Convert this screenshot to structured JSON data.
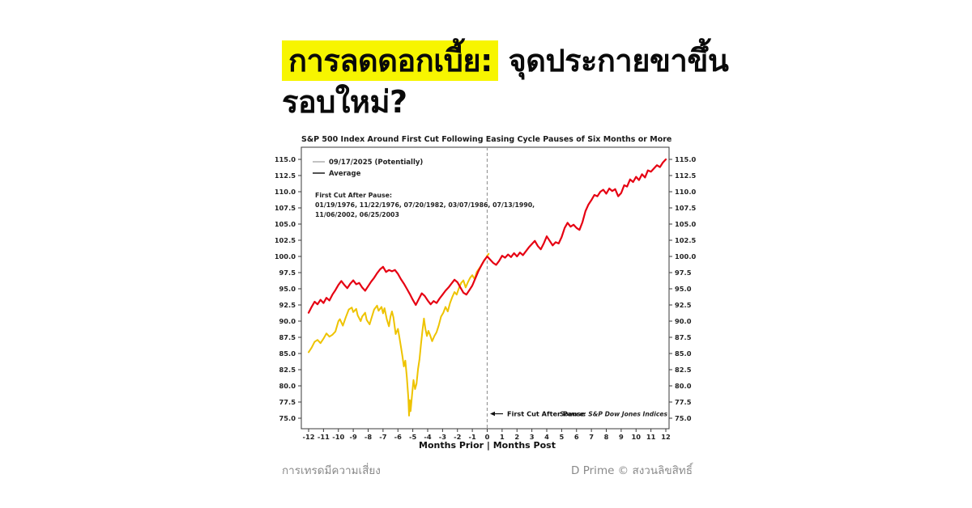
{
  "headline": {
    "highlight": "การลดดอกเบี้ย:",
    "rest": " จุดประกายขาขึ้น",
    "line2": "รอบใหม่?"
  },
  "footer": {
    "disclaimer": "การเทรดมีความเสี่ยง",
    "brand": "D Prime © สงวนลิขสิทธิ์"
  },
  "colors": {
    "headline_highlight": "#f7f500",
    "average_line": "#e60012",
    "potential_line": "#eec300",
    "legend_swatch_potential": "#b3b3b3",
    "legend_swatch_average": "#404040"
  },
  "chart_data": {
    "type": "line",
    "title": "S&P 500 Index Around First Cut Following Easing Cycle Pauses of Six Months or More",
    "xlabel": "Months Prior | Months Post",
    "ylabel": "",
    "xlim": [
      -12.5,
      12.5
    ],
    "ylim": [
      73.4,
      116.9
    ],
    "grid": false,
    "legend_position": "upper-left-inside",
    "x_ticks": [
      -12,
      -11,
      -10,
      -9,
      -8,
      -7,
      -6,
      -5,
      -4,
      -3,
      -2,
      -1,
      0,
      1,
      2,
      3,
      4,
      5,
      6,
      7,
      8,
      9,
      10,
      11,
      12
    ],
    "y_ticks": [
      75.0,
      77.5,
      80.0,
      82.5,
      85.0,
      87.5,
      90.0,
      92.5,
      95.0,
      97.5,
      100.0,
      102.5,
      105.0,
      107.5,
      110.0,
      112.5,
      115.0
    ],
    "legend": [
      {
        "label": "09/17/2025 (Potentially)",
        "swatch": "#b3b3b3"
      },
      {
        "label": "Average",
        "swatch": "#404040"
      }
    ],
    "annotation": {
      "title": "First Cut After Pause:",
      "lines": [
        "01/19/1976, 11/22/1976, 07/20/1982, 03/07/1986, 07/13/1990,",
        "11/06/2002, 06/25/2003"
      ]
    },
    "event_line_x": 0,
    "event_label": "First Cut After Pause",
    "source": "Source:   S&P Dow Jones Indices",
    "series": [
      {
        "name": "09/17/2025 (Potentially)",
        "color": "#eec300",
        "width": 2,
        "points": [
          [
            -12,
            85.2
          ],
          [
            -11.8,
            85.9
          ],
          [
            -11.6,
            86.8
          ],
          [
            -11.4,
            87.1
          ],
          [
            -11.2,
            86.6
          ],
          [
            -11,
            87.3
          ],
          [
            -10.8,
            88.1
          ],
          [
            -10.6,
            87.6
          ],
          [
            -10.4,
            87.9
          ],
          [
            -10.2,
            88.4
          ],
          [
            -10,
            90.0
          ],
          [
            -9.9,
            90.3
          ],
          [
            -9.7,
            89.3
          ],
          [
            -9.5,
            90.6
          ],
          [
            -9.3,
            91.8
          ],
          [
            -9.1,
            92.1
          ],
          [
            -9,
            91.4
          ],
          [
            -8.8,
            91.9
          ],
          [
            -8.7,
            90.9
          ],
          [
            -8.5,
            90.0
          ],
          [
            -8.4,
            90.7
          ],
          [
            -8.2,
            91.3
          ],
          [
            -8.1,
            90.2
          ],
          [
            -7.9,
            89.5
          ],
          [
            -7.8,
            90.3
          ],
          [
            -7.6,
            91.8
          ],
          [
            -7.4,
            92.4
          ],
          [
            -7.3,
            91.6
          ],
          [
            -7.1,
            92.2
          ],
          [
            -7,
            91.2
          ],
          [
            -6.9,
            92.0
          ],
          [
            -6.75,
            90.3
          ],
          [
            -6.6,
            89.2
          ],
          [
            -6.5,
            90.7
          ],
          [
            -6.4,
            91.5
          ],
          [
            -6.3,
            90.6
          ],
          [
            -6.15,
            88.0
          ],
          [
            -6,
            88.8
          ],
          [
            -5.9,
            87.5
          ],
          [
            -5.8,
            86.1
          ],
          [
            -5.7,
            84.6
          ],
          [
            -5.6,
            83.0
          ],
          [
            -5.5,
            83.9
          ],
          [
            -5.4,
            81.3
          ],
          [
            -5.3,
            78.2
          ],
          [
            -5.25,
            75.4
          ],
          [
            -5.2,
            77.8
          ],
          [
            -5.15,
            76.1
          ],
          [
            -5.05,
            78.6
          ],
          [
            -4.95,
            80.9
          ],
          [
            -4.85,
            79.5
          ],
          [
            -4.75,
            80.3
          ],
          [
            -4.65,
            82.6
          ],
          [
            -4.55,
            84.1
          ],
          [
            -4.45,
            86.4
          ],
          [
            -4.35,
            88.6
          ],
          [
            -4.25,
            90.4
          ],
          [
            -4.15,
            88.8
          ],
          [
            -4.05,
            87.7
          ],
          [
            -3.95,
            88.5
          ],
          [
            -3.85,
            87.9
          ],
          [
            -3.7,
            86.9
          ],
          [
            -3.55,
            87.7
          ],
          [
            -3.4,
            88.3
          ],
          [
            -3.25,
            89.4
          ],
          [
            -3.1,
            90.7
          ],
          [
            -2.95,
            91.3
          ],
          [
            -2.8,
            92.2
          ],
          [
            -2.65,
            91.5
          ],
          [
            -2.5,
            92.8
          ],
          [
            -2.35,
            93.7
          ],
          [
            -2.2,
            94.5
          ],
          [
            -2.05,
            94.1
          ],
          [
            -1.9,
            95.1
          ],
          [
            -1.75,
            95.9
          ],
          [
            -1.6,
            96.3
          ],
          [
            -1.45,
            95.2
          ],
          [
            -1.3,
            96.0
          ],
          [
            -1.15,
            96.7
          ],
          [
            -1,
            97.1
          ],
          [
            -0.85,
            96.5
          ],
          [
            -0.7,
            97.6
          ],
          [
            -0.55,
            98.1
          ],
          [
            -0.4,
            98.6
          ],
          [
            -0.25,
            99.2
          ],
          [
            -0.1,
            99.7
          ],
          [
            0,
            100.1
          ],
          [
            0.1,
            100.4
          ]
        ]
      },
      {
        "name": "Average",
        "color": "#e60012",
        "width": 2.2,
        "points": [
          [
            -12,
            91.3
          ],
          [
            -11.8,
            92.2
          ],
          [
            -11.6,
            93.0
          ],
          [
            -11.4,
            92.6
          ],
          [
            -11.2,
            93.3
          ],
          [
            -11,
            92.8
          ],
          [
            -10.8,
            93.6
          ],
          [
            -10.6,
            93.2
          ],
          [
            -10.4,
            94.1
          ],
          [
            -10.2,
            94.8
          ],
          [
            -10,
            95.6
          ],
          [
            -9.8,
            96.2
          ],
          [
            -9.6,
            95.6
          ],
          [
            -9.4,
            95.1
          ],
          [
            -9.2,
            95.8
          ],
          [
            -9,
            96.3
          ],
          [
            -8.8,
            95.7
          ],
          [
            -8.6,
            95.9
          ],
          [
            -8.4,
            95.2
          ],
          [
            -8.2,
            94.7
          ],
          [
            -8,
            95.4
          ],
          [
            -7.8,
            96.1
          ],
          [
            -7.6,
            96.7
          ],
          [
            -7.4,
            97.4
          ],
          [
            -7.2,
            98.0
          ],
          [
            -7,
            98.4
          ],
          [
            -6.8,
            97.6
          ],
          [
            -6.6,
            97.9
          ],
          [
            -6.4,
            97.7
          ],
          [
            -6.2,
            97.9
          ],
          [
            -6,
            97.3
          ],
          [
            -5.8,
            96.5
          ],
          [
            -5.6,
            95.8
          ],
          [
            -5.4,
            95.0
          ],
          [
            -5.2,
            94.2
          ],
          [
            -5,
            93.3
          ],
          [
            -4.8,
            92.5
          ],
          [
            -4.6,
            93.4
          ],
          [
            -4.4,
            94.3
          ],
          [
            -4.2,
            93.9
          ],
          [
            -4,
            93.2
          ],
          [
            -3.8,
            92.6
          ],
          [
            -3.6,
            93.1
          ],
          [
            -3.4,
            92.8
          ],
          [
            -3.2,
            93.5
          ],
          [
            -3,
            94.1
          ],
          [
            -2.8,
            94.7
          ],
          [
            -2.6,
            95.2
          ],
          [
            -2.4,
            95.8
          ],
          [
            -2.2,
            96.4
          ],
          [
            -2,
            96.0
          ],
          [
            -1.8,
            95.2
          ],
          [
            -1.6,
            94.4
          ],
          [
            -1.4,
            94.1
          ],
          [
            -1.2,
            94.8
          ],
          [
            -1,
            95.5
          ],
          [
            -0.8,
            96.6
          ],
          [
            -0.6,
            97.7
          ],
          [
            -0.4,
            98.6
          ],
          [
            -0.2,
            99.4
          ],
          [
            0,
            100.0
          ],
          [
            0.2,
            99.5
          ],
          [
            0.4,
            99.0
          ],
          [
            0.6,
            98.7
          ],
          [
            0.8,
            99.3
          ],
          [
            1,
            100.1
          ],
          [
            1.2,
            99.8
          ],
          [
            1.4,
            100.3
          ],
          [
            1.6,
            99.9
          ],
          [
            1.8,
            100.5
          ],
          [
            2,
            100.0
          ],
          [
            2.2,
            100.6
          ],
          [
            2.4,
            100.2
          ],
          [
            2.6,
            100.8
          ],
          [
            2.8,
            101.4
          ],
          [
            3,
            101.9
          ],
          [
            3.2,
            102.4
          ],
          [
            3.4,
            101.6
          ],
          [
            3.6,
            101.1
          ],
          [
            3.8,
            102.0
          ],
          [
            4,
            103.1
          ],
          [
            4.2,
            102.4
          ],
          [
            4.4,
            101.7
          ],
          [
            4.6,
            102.2
          ],
          [
            4.8,
            102.0
          ],
          [
            5,
            103.0
          ],
          [
            5.2,
            104.4
          ],
          [
            5.4,
            105.2
          ],
          [
            5.6,
            104.6
          ],
          [
            5.8,
            104.9
          ],
          [
            6,
            104.4
          ],
          [
            6.2,
            104.1
          ],
          [
            6.4,
            105.3
          ],
          [
            6.6,
            107.0
          ],
          [
            6.8,
            108.0
          ],
          [
            7,
            108.7
          ],
          [
            7.2,
            109.5
          ],
          [
            7.4,
            109.3
          ],
          [
            7.6,
            110.0
          ],
          [
            7.8,
            110.3
          ],
          [
            8,
            109.7
          ],
          [
            8.2,
            110.5
          ],
          [
            8.4,
            110.1
          ],
          [
            8.6,
            110.4
          ],
          [
            8.8,
            109.3
          ],
          [
            9,
            109.8
          ],
          [
            9.2,
            111.0
          ],
          [
            9.4,
            110.8
          ],
          [
            9.6,
            111.9
          ],
          [
            9.8,
            111.5
          ],
          [
            10,
            112.3
          ],
          [
            10.2,
            111.8
          ],
          [
            10.4,
            112.7
          ],
          [
            10.6,
            112.2
          ],
          [
            10.8,
            113.3
          ],
          [
            11,
            113.1
          ],
          [
            11.2,
            113.6
          ],
          [
            11.4,
            114.1
          ],
          [
            11.6,
            113.8
          ],
          [
            11.8,
            114.5
          ],
          [
            12,
            115.0
          ]
        ]
      }
    ]
  }
}
